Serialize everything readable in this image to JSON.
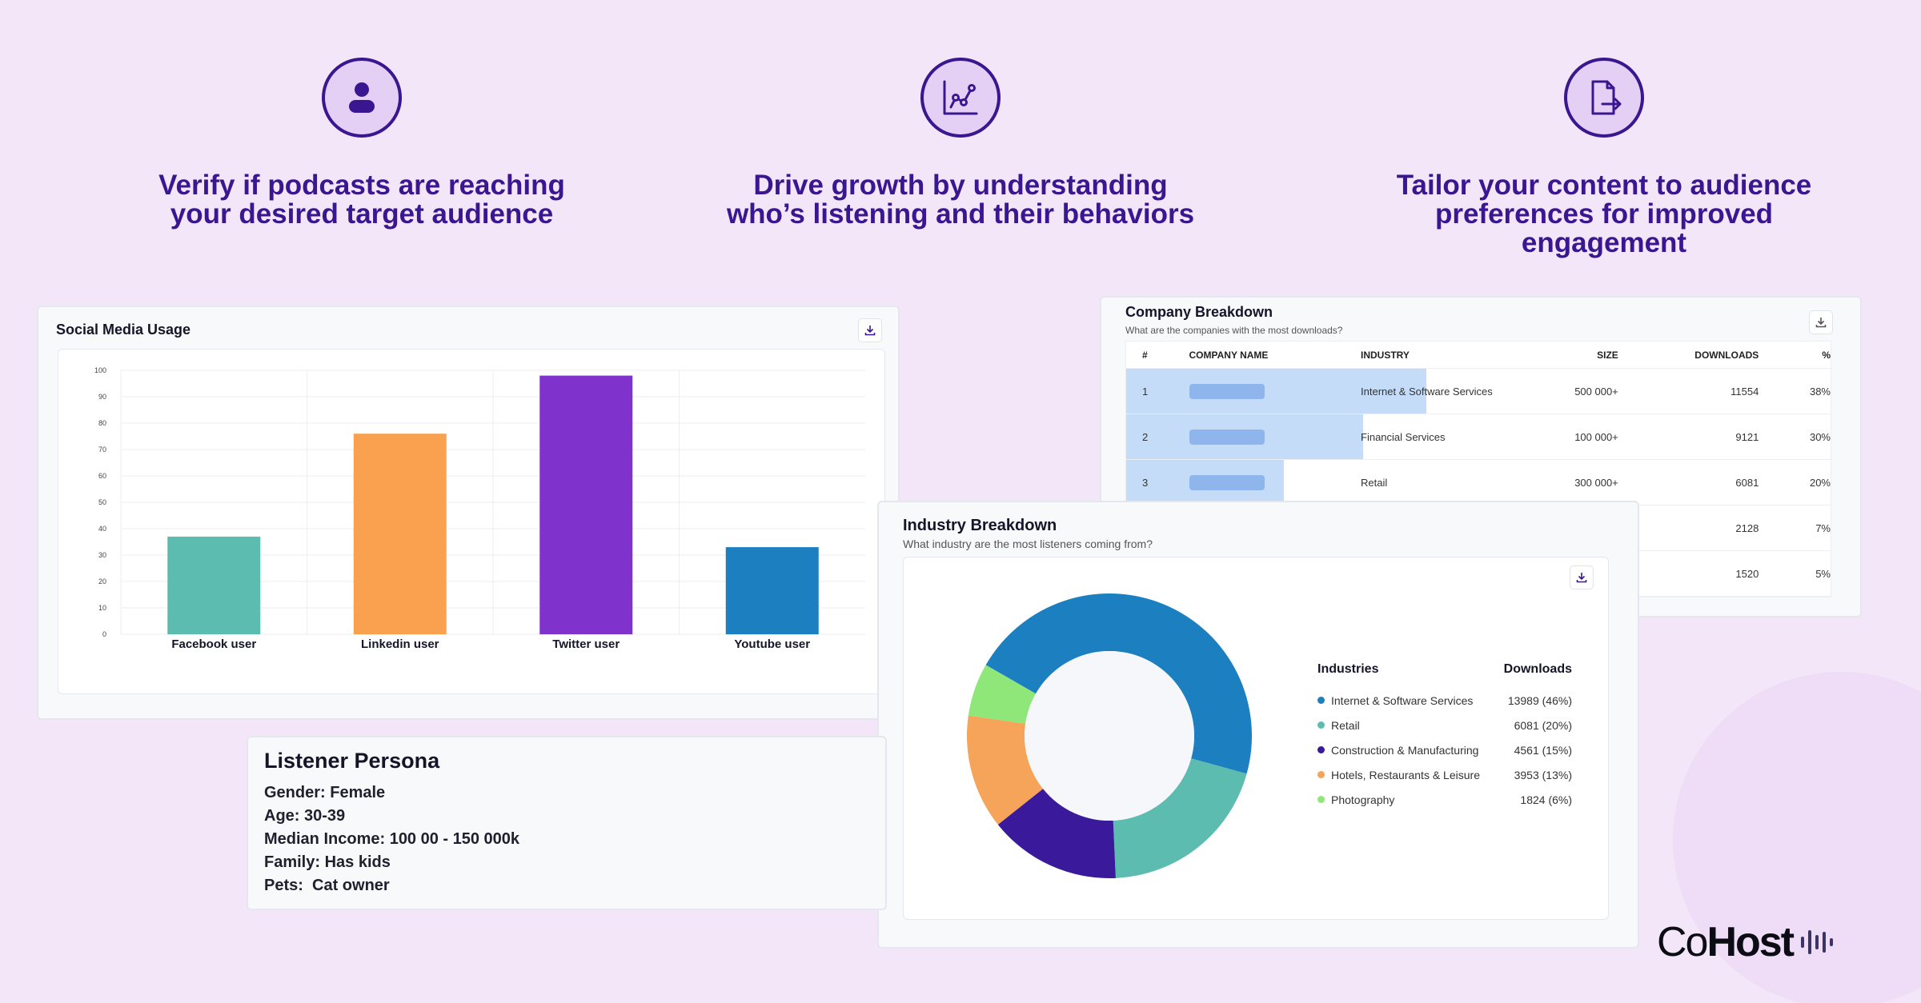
{
  "features": [
    {
      "icon": "user-icon",
      "headline": "Verify if podcasts are reaching\nyour desired target audience"
    },
    {
      "icon": "growth-chart-icon",
      "headline": "Drive growth by understanding\nwho’s listening and their behaviors"
    },
    {
      "icon": "document-export-icon",
      "headline": "Tailor your content to audience\npreferences for improved engagement"
    }
  ],
  "social": {
    "title": "Social Media Usage",
    "chart_data": {
      "type": "bar",
      "title": "Social Media Usage",
      "categories": [
        "Facebook user",
        "Linkedin user",
        "Twitter user",
        "Youtube user"
      ],
      "values": [
        37,
        76,
        98,
        33
      ],
      "colors": [
        "#5dbcb0",
        "#f9a14f",
        "#8033cc",
        "#1c7fc0"
      ],
      "ylim": [
        0,
        100
      ],
      "yticks": [
        0,
        10,
        20,
        30,
        40,
        50,
        60,
        70,
        80,
        90,
        100
      ],
      "grid": true
    }
  },
  "company": {
    "title": "Company Breakdown",
    "subtitle": "What are the companies with the most downloads?",
    "headers": {
      "num": "#",
      "name": "COMPANY NAME",
      "industry": "INDUSTRY",
      "size": "SIZE",
      "downloads": "DOWNLOADS",
      "pct": "%"
    },
    "rows": [
      {
        "num": "1",
        "industry": "Internet & Software Services",
        "size": "500 000+",
        "downloads": "11554",
        "pct": "38%",
        "share": 0.38
      },
      {
        "num": "2",
        "industry": "Financial Services",
        "size": "100 000+",
        "downloads": "9121",
        "pct": "30%",
        "share": 0.3
      },
      {
        "num": "3",
        "industry": "Retail",
        "size": "300 000+",
        "downloads": "6081",
        "pct": "20%",
        "share": 0.2
      },
      {
        "num": "",
        "industry": "",
        "size": "",
        "downloads": "2128",
        "pct": "7%",
        "share": 0
      },
      {
        "num": "",
        "industry": "",
        "size": "",
        "downloads": "1520",
        "pct": "5%",
        "share": 0
      }
    ]
  },
  "industry": {
    "title": "Industry Breakdown",
    "subtitle": "What industry are the most listeners coming from?",
    "legend_header": {
      "label": "Industries",
      "value": "Downloads"
    },
    "chart_data": {
      "type": "pie",
      "variant": "donut",
      "title": "Industry Breakdown",
      "slices": [
        {
          "label": "Internet & Software Services",
          "value": 13989,
          "display": "13989 (46%)",
          "color": "#1c7fc0"
        },
        {
          "label": "Retail",
          "value": 6081,
          "display": "6081 (20%)",
          "color": "#5dbcb0"
        },
        {
          "label": "Construction & Manufacturing",
          "value": 4561,
          "display": "4561 (15%)",
          "color": "#3a1a9a"
        },
        {
          "label": "Hotels, Restaurants & Leisure",
          "value": 3953,
          "display": "3953 (13%)",
          "color": "#f5a45a"
        },
        {
          "label": "Photography",
          "value": 1824,
          "display": "1824 (6%)",
          "color": "#8fe77a"
        }
      ]
    }
  },
  "persona": {
    "title": "Listener Persona",
    "lines": [
      "Gender: Female",
      "Age: 30-39",
      "Median Income: 100 00 - 150 000k",
      "Family: Has kids",
      "Pets:  Cat owner"
    ]
  },
  "logo": {
    "part1": "Co",
    "part2": "Host"
  }
}
